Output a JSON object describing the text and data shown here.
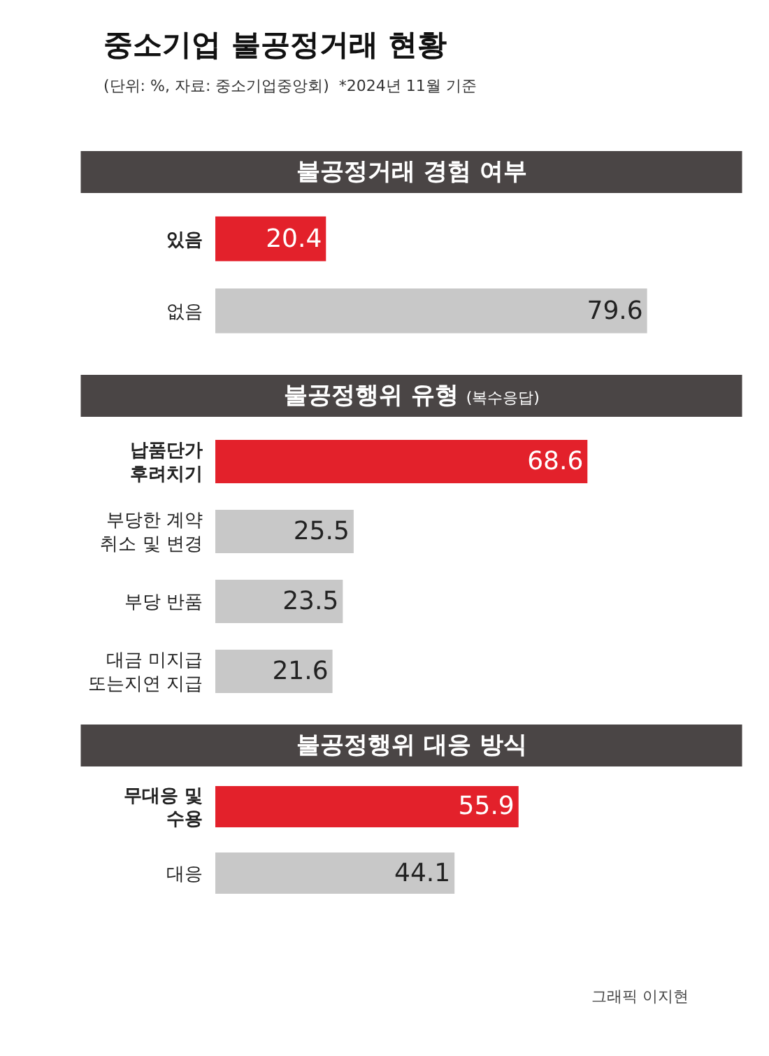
{
  "chart_data": [
    {
      "type": "other",
      "title": "중소기업 불공정거래 현황",
      "subtitle": "(단위: %, 자료: 중소기업중앙회)  *2024년 11월 기준",
      "annotations": [
        "그래픽 이지현"
      ]
    },
    {
      "type": "bar",
      "orientation": "horizontal",
      "title": "불공정거래 경험 여부",
      "categories": [
        "있음",
        "없음"
      ],
      "values": [
        20.4,
        79.6
      ],
      "colors": [
        "#e3212b",
        "#c8c8c8"
      ],
      "data_labels": true
    },
    {
      "type": "bar",
      "orientation": "horizontal",
      "title": "불공정행위 유형",
      "subtitle": "(복수응답)",
      "categories": [
        "납품단가\n후려치기",
        "부당한 계약\n취소 및 변경",
        "부당 반품",
        "대금 미지급\n또는지연 지급"
      ],
      "values": [
        68.6,
        25.5,
        23.5,
        21.6
      ],
      "colors": [
        "#e3212b",
        "#c8c8c8",
        "#c8c8c8",
        "#c8c8c8"
      ],
      "data_labels": true
    },
    {
      "type": "bar",
      "orientation": "horizontal",
      "title": "불공정행위 대응 방식",
      "categories": [
        "무대응 및\n수용",
        "대응"
      ],
      "values": [
        55.9,
        44.1
      ],
      "colors": [
        "#e3212b",
        "#c8c8c8"
      ],
      "data_labels": true
    }
  ]
}
